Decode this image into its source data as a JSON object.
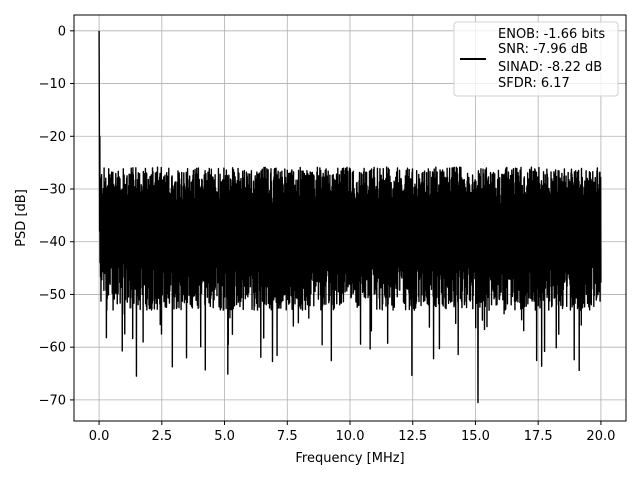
{
  "chart_data": {
    "type": "line",
    "xlabel": "Frequency [MHz]",
    "ylabel": "PSD [dB]",
    "xlim": [
      -1.0,
      21.0
    ],
    "ylim": [
      -74.0,
      3.0
    ],
    "xticks": [
      0.0,
      2.5,
      5.0,
      7.5,
      10.0,
      12.5,
      15.0,
      17.5,
      20.0
    ],
    "xtick_labels": [
      "0.0",
      "2.5",
      "5.0",
      "7.5",
      "10.0",
      "12.5",
      "15.0",
      "17.5",
      "20.0"
    ],
    "yticks": [
      0,
      -10,
      -20,
      -30,
      -40,
      -50,
      -60,
      -70
    ],
    "ytick_labels": [
      "0",
      "−10",
      "−20",
      "−30",
      "−40",
      "−50",
      "−60",
      "−70"
    ],
    "grid": true,
    "legend_position": "top-right",
    "legend_lines": [
      "ENOB: -1.66 bits",
      "SNR: -7.96 dB",
      "SINAD: -8.22 dB",
      "SFDR: 6.17"
    ],
    "series": [
      {
        "color": "#000000",
        "x_range": [
          0.0,
          20.0
        ],
        "peak": {
          "x": 0.0,
          "y": 0.0
        },
        "noise_floor_mean": -38,
        "noise_upper_typical": -29,
        "noise_lower_typical": -50,
        "min_value": {
          "x": 15.1,
          "y": -70.5
        }
      }
    ]
  }
}
